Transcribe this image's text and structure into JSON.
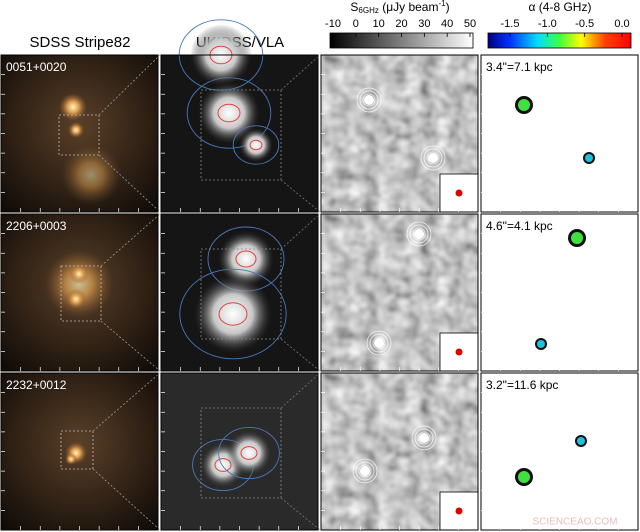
{
  "header": {
    "columns": [
      "SDSS Stripe82",
      "UKIDSS/VLA"
    ],
    "colorbars": [
      {
        "label": {
          "symbol": "S",
          "subscript": "6GHz",
          "unit": " (μJy beam",
          "superscript": "-1",
          "close": ")"
        },
        "ticks": [
          "-10",
          "0",
          "10",
          "20",
          "30",
          "40",
          "50"
        ]
      },
      {
        "label": "α (4-8 GHz)",
        "ticks": [
          "-1.5",
          "-1.0",
          "-0.5",
          "0.0"
        ]
      }
    ]
  },
  "rows": [
    {
      "name": "0051+0020",
      "scale": "3.4\"=7.1 kpc"
    },
    {
      "name": "2206+0003",
      "scale": "4.6\"=4.1 kpc"
    },
    {
      "name": "2232+0012",
      "scale": "3.2\"=11.6 kpc"
    }
  ],
  "watermark": "SCIENCEAO.COM"
}
